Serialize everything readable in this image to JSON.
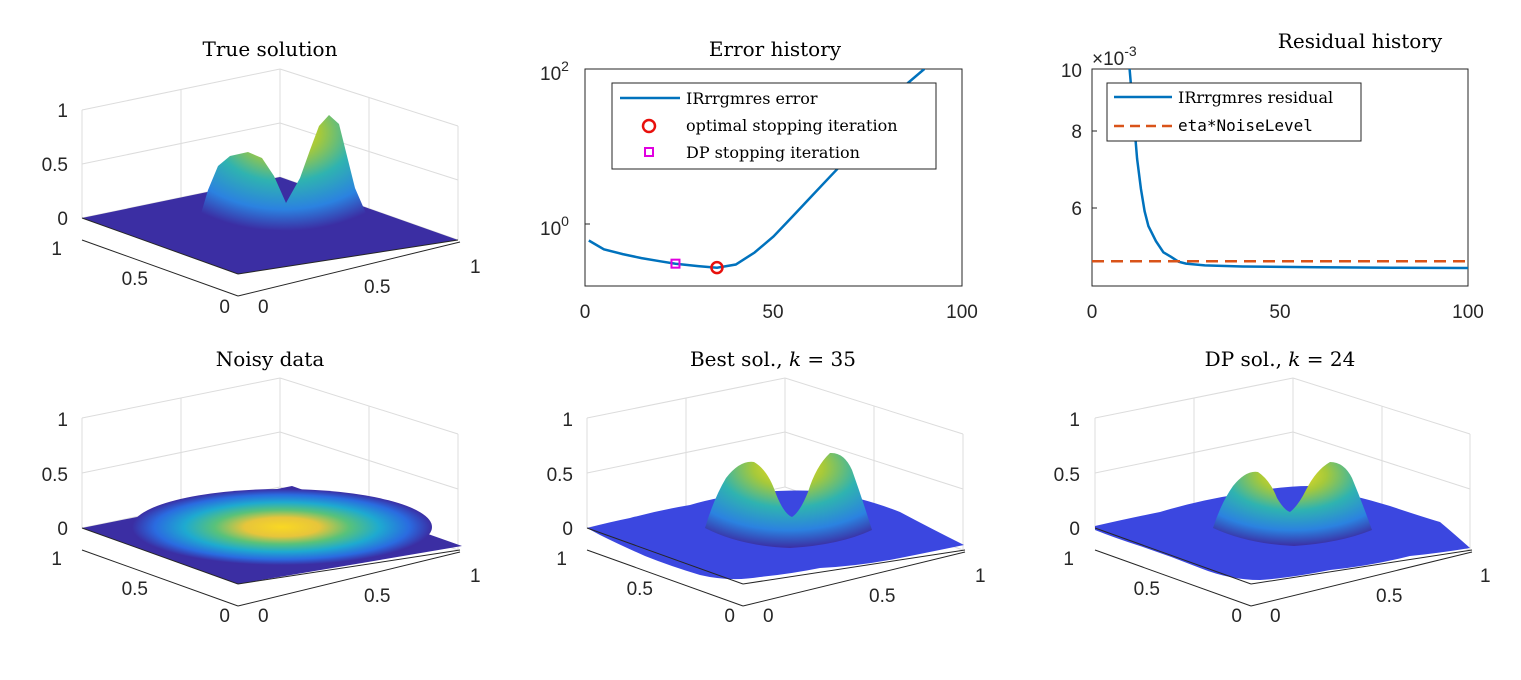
{
  "colors": {
    "blue": "#0072BD",
    "orange": "#D95319",
    "red": "#e8100c",
    "magenta": "#e000e0",
    "parula_low": "#3b2ea3",
    "parula_mid": "#22b4c4",
    "parula_high": "#f6e41d"
  },
  "chart_data": [
    {
      "type": "surface3d",
      "title": "True solution",
      "zticks": [
        "0",
        "0.5",
        "1"
      ],
      "yticks": [
        "1",
        "0.5",
        "0"
      ],
      "xticks": [
        "0",
        "0.5",
        "1"
      ],
      "peaks": [
        {
          "x": 0.3,
          "y": 0.5,
          "height": 0.62
        },
        {
          "x": 0.72,
          "y": 0.5,
          "height": 1.0
        }
      ]
    },
    {
      "type": "line",
      "title": "Error history",
      "yscale": "log",
      "ytick_labels": [
        "10",
        "10"
      ],
      "ytick_exponents": [
        "2",
        "0"
      ],
      "xticks": [
        "0",
        "50",
        "100"
      ],
      "xlim": [
        0,
        100
      ],
      "legend": [
        "IRrrgmres error",
        "optimal stopping iteration",
        "DP stopping iteration"
      ],
      "series": [
        {
          "name": "IRrrgmres error",
          "x": [
            1,
            5,
            10,
            15,
            20,
            24,
            30,
            35,
            40,
            45,
            50,
            55,
            60,
            65,
            70,
            75,
            80,
            85,
            90
          ],
          "log10_y": [
            -0.15,
            -0.26,
            -0.32,
            -0.37,
            -0.41,
            -0.44,
            -0.47,
            -0.49,
            -0.45,
            -0.3,
            -0.1,
            0.15,
            0.4,
            0.65,
            0.9,
            1.2,
            1.5,
            1.8,
            2.0
          ]
        }
      ],
      "markers": [
        {
          "name": "optimal stopping iteration",
          "x": 35,
          "log10_y": -0.49
        },
        {
          "name": "DP stopping iteration",
          "x": 24,
          "log10_y": -0.44
        }
      ]
    },
    {
      "type": "line",
      "title": "Residual history",
      "yscale_multiplier": "×10",
      "yscale_exponent": "-3",
      "yticks": [
        "10",
        "8",
        "6"
      ],
      "xticks": [
        "0",
        "50",
        "100"
      ],
      "xlim": [
        0,
        100
      ],
      "ylim": [
        4.2,
        10
      ],
      "legend": [
        "IRrrgmres residual",
        "eta*NoiseLevel"
      ],
      "series": [
        {
          "name": "IRrrgmres residual",
          "x": [
            10,
            11,
            12,
            13,
            14,
            15,
            17,
            19,
            21,
            23,
            25,
            30,
            40,
            60,
            80,
            100
          ],
          "y": [
            10.0,
            8.8,
            7.6,
            6.8,
            6.2,
            5.8,
            5.4,
            5.1,
            4.98,
            4.85,
            4.8,
            4.75,
            4.72,
            4.7,
            4.69,
            4.68
          ]
        },
        {
          "name": "eta*NoiseLevel",
          "x": [
            0,
            100
          ],
          "y": [
            4.86,
            4.86
          ]
        }
      ]
    },
    {
      "type": "surface3d",
      "title": "Noisy data",
      "zticks": [
        "0",
        "0.5",
        "1"
      ],
      "yticks": [
        "1",
        "0.5",
        "0"
      ],
      "xticks": [
        "0",
        "0.5",
        "1"
      ]
    },
    {
      "type": "surface3d",
      "title_prefix": "Best sol., ",
      "title_var": "k",
      "title_suffix": " = 35",
      "zticks": [
        "0",
        "0.5",
        "1"
      ],
      "yticks": [
        "1",
        "0.5",
        "0"
      ],
      "xticks": [
        "0",
        "0.5",
        "1"
      ]
    },
    {
      "type": "surface3d",
      "title_prefix": "DP sol., ",
      "title_var": "k",
      "title_suffix": " = 24",
      "zticks": [
        "0",
        "0.5",
        "1"
      ],
      "yticks": [
        "1",
        "0.5",
        "0"
      ],
      "xticks": [
        "0",
        "0.5",
        "1"
      ]
    }
  ]
}
